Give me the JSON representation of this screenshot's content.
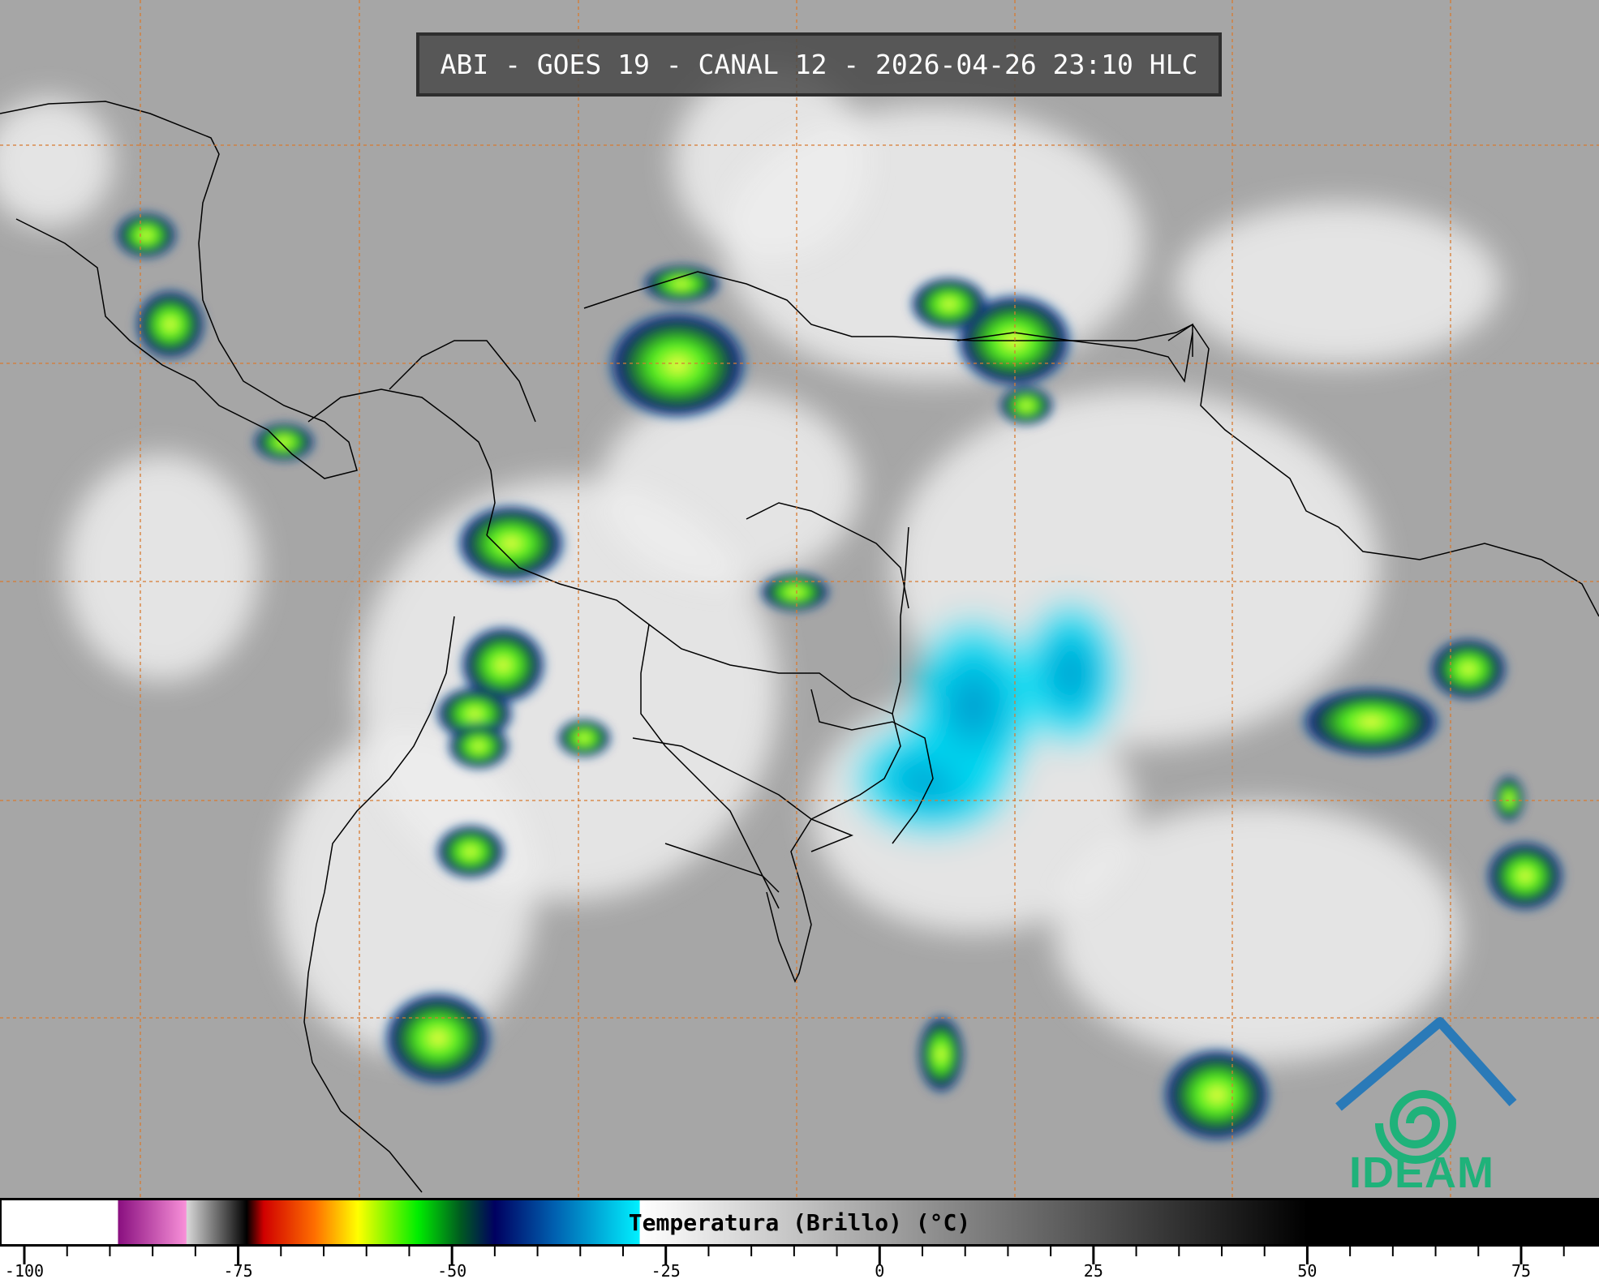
{
  "header": {
    "title": "ABI - GOES 19 - CANAL 12 - 2026-04-26 23:10 HLC"
  },
  "colorbar": {
    "label": "Temperatura (Brillo) (°C)",
    "range": [
      -103,
      85
    ],
    "ticks": [
      "-100",
      "-75",
      "-50",
      "-25",
      "0",
      "25",
      "50",
      "75"
    ],
    "tick_values": [
      -100,
      -75,
      -50,
      -25,
      0,
      25,
      50,
      75
    ],
    "minor_tick_step": 5,
    "stops": [
      {
        "value": -103,
        "color": "#ffffff"
      },
      {
        "value": -89.1,
        "color": "#ffffff"
      },
      {
        "value": -89,
        "color": "#8a1080"
      },
      {
        "value": -81.1,
        "color": "#f890d8"
      },
      {
        "value": -81,
        "color": "#d8d8d8"
      },
      {
        "value": -76,
        "color": "#404040"
      },
      {
        "value": -74,
        "color": "#000000"
      },
      {
        "value": -72,
        "color": "#d00000"
      },
      {
        "value": -66,
        "color": "#ff7000"
      },
      {
        "value": -61,
        "color": "#ffff00"
      },
      {
        "value": -54,
        "color": "#00ee00"
      },
      {
        "value": -49,
        "color": "#005a20"
      },
      {
        "value": -45,
        "color": "#000060"
      },
      {
        "value": -38,
        "color": "#0060b0"
      },
      {
        "value": -28.1,
        "color": "#00f0ff"
      },
      {
        "value": -28,
        "color": "#ffffff"
      },
      {
        "value": 50,
        "color": "#000000"
      },
      {
        "value": 85,
        "color": "#000000"
      }
    ]
  },
  "map": {
    "background_color": "#a8a8a8",
    "grid_color": "#d87a30",
    "coastline_color": "#000000"
  },
  "logo": {
    "text": "IDEAM",
    "colors": {
      "roof": "#2a7ab8",
      "swirl": "#1fb27a"
    }
  }
}
